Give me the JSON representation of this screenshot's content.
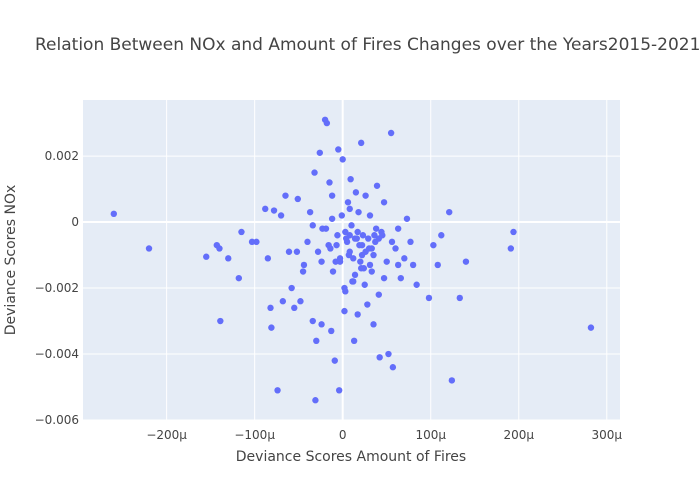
{
  "chart_data": {
    "type": "scatter",
    "title": "Relation Between NOx and Amount of Fires Changes over the Years2015-2021",
    "xlabel": "Deviance Scores Amount of Fires",
    "ylabel": "Deviance Scores NOx",
    "xlim": [
      -0.000295,
      0.000315
    ],
    "ylim": [
      -0.006,
      0.0037
    ],
    "x_ticks": [
      {
        "value": -0.0002,
        "label": "−200μ"
      },
      {
        "value": -0.0001,
        "label": "−100μ"
      },
      {
        "value": 0,
        "label": "0"
      },
      {
        "value": 0.0001,
        "label": "100μ"
      },
      {
        "value": 0.0002,
        "label": "200μ"
      },
      {
        "value": 0.0003,
        "label": "300μ"
      }
    ],
    "y_ticks": [
      {
        "value": -0.006,
        "label": "−0.006"
      },
      {
        "value": -0.004,
        "label": "−0.004"
      },
      {
        "value": -0.002,
        "label": "−0.002"
      },
      {
        "value": 0,
        "label": "0"
      },
      {
        "value": 0.002,
        "label": "0.002"
      }
    ],
    "grid": true,
    "marker_color": "#636efa",
    "plot_bg": "#e5ecf6",
    "grid_color": "#ffffff",
    "series": [
      {
        "x": [
          -0.00026,
          -0.00022,
          -0.000155,
          -0.000143,
          -0.00014,
          -0.000139,
          -0.00013,
          -0.000118,
          -0.000115,
          -0.000103,
          -9.8e-05,
          -8.8e-05,
          -8.5e-05,
          -8.2e-05,
          -8.1e-05,
          -7.8e-05,
          -7.4e-05,
          -7e-05,
          -6.8e-05,
          -6.5e-05,
          -6.1e-05,
          -5.8e-05,
          -5.5e-05,
          -5.1e-05,
          -4.8e-05,
          -4.4e-05,
          -4e-05,
          -3.7e-05,
          -3.4e-05,
          -3.2e-05,
          -3.1e-05,
          -3e-05,
          -2.8e-05,
          -2.6e-05,
          -2.4e-05,
          -2.3e-05,
          -2e-05,
          -1.8e-05,
          -1.5e-05,
          -1.3e-05,
          -1.2e-05,
          -1.1e-05,
          -9e-06,
          -7e-06,
          -5e-06,
          -4e-06,
          -3e-06,
          0.0,
          2e-06,
          3e-06,
          4e-06,
          6e-06,
          8e-06,
          9e-06,
          1.1e-05,
          1.3e-05,
          1.4e-05,
          1.5e-05,
          1.7e-05,
          1.8e-05,
          2e-05,
          2.1e-05,
          2.3e-05,
          2.5e-05,
          2.6e-05,
          2.8e-05,
          3e-05,
          3.1e-05,
          3.3e-05,
          3.5e-05,
          3.7e-05,
          3.9e-05,
          4.1e-05,
          4.2e-05,
          4.5e-05,
          4.7e-05,
          5e-05,
          5.2e-05,
          5.5e-05,
          5.7e-05,
          6e-05,
          6.3e-05,
          6.6e-05,
          7e-05,
          7.3e-05,
          7.7e-05,
          8e-05,
          8.4e-05,
          9.8e-05,
          0.000103,
          0.000108,
          0.000112,
          0.000121,
          0.000124,
          0.000133,
          0.00014,
          0.000191,
          0.000194,
          0.000282,
          -3.4e-05,
          -1.6e-05,
          8e-06,
          2.2e-05,
          3.8e-05,
          5.6e-05,
          -4.5e-05,
          1.2e-05,
          2.9e-05,
          -5.2e-05,
          6.3e-05,
          -1.2e-05,
          2e-06,
          1.7e-05,
          3.3e-05,
          -2.4e-05,
          4.7e-05,
          -6e-06,
          8e-06,
          2.1e-05,
          3.5e-05,
          -1.9e-05,
          5e-06,
          1.4e-05,
          2.6e-05,
          4.1e-05,
          -3e-06,
          1e-05,
          1.9e-05,
          3.1e-05,
          4.4e-05,
          -1.4e-05,
          -1e-06,
          7e-06,
          1.6e-05,
          2.4e-05,
          3.6e-05,
          -8e-06,
          3e-06,
          1.2e-05,
          2.2e-05
        ],
        "y": [
          0.00025,
          -0.0008,
          -0.00105,
          -0.0007,
          -0.0008,
          -0.003,
          -0.0011,
          -0.0017,
          -0.0003,
          -0.0006,
          -0.0006,
          0.0004,
          -0.0011,
          -0.0026,
          -0.0032,
          0.00035,
          -0.0051,
          0.0002,
          -0.0024,
          0.0008,
          -0.0009,
          -0.002,
          -0.0026,
          0.0007,
          -0.0024,
          -0.0013,
          -0.0006,
          0.0003,
          -0.003,
          0.0015,
          -0.0054,
          -0.0036,
          -0.0009,
          0.0021,
          -0.0031,
          -0.0002,
          0.0031,
          0.003,
          0.0012,
          -0.0033,
          0.0008,
          -0.0015,
          -0.0042,
          -0.0007,
          0.0022,
          -0.0051,
          -0.0012,
          0.0019,
          -0.0027,
          -0.0021,
          -0.0005,
          0.0006,
          -0.0009,
          0.0013,
          -0.0018,
          -0.0036,
          -0.0005,
          0.0009,
          -0.0028,
          0.0003,
          -0.0012,
          0.0024,
          -0.0004,
          -0.0019,
          0.0008,
          -0.0025,
          -0.0008,
          0.0002,
          -0.0015,
          -0.0031,
          -0.0006,
          0.0011,
          -0.0022,
          -0.0041,
          -0.0004,
          0.0006,
          -0.0012,
          -0.004,
          0.0027,
          -0.0044,
          -0.0008,
          -0.0002,
          -0.0017,
          -0.0011,
          0.0001,
          -0.0006,
          -0.0013,
          -0.0019,
          -0.0023,
          -0.0007,
          -0.0013,
          -0.0004,
          0.0003,
          -0.0048,
          -0.0023,
          -0.0012,
          -0.0008,
          -0.0003,
          -0.0032,
          -0.0001,
          -0.0007,
          -0.0004,
          -0.001,
          -0.0002,
          -0.0006,
          -0.0015,
          -0.0011,
          -0.0005,
          -0.0009,
          -0.0013,
          0.0001,
          -0.002,
          -0.0003,
          -0.0008,
          -0.0012,
          -0.0017,
          -0.0004,
          0.0004,
          -0.0014,
          -0.001,
          -0.0002,
          -0.0006,
          -0.0016,
          -0.0009,
          -0.0005,
          -0.0011,
          -0.0001,
          -0.0007,
          -0.0013,
          -0.0003,
          -0.0008,
          0.0002,
          -0.001,
          -0.0005,
          -0.0014,
          -0.0004,
          -0.0012,
          -0.0003,
          -0.0018,
          -0.0007
        ]
      }
    ]
  }
}
